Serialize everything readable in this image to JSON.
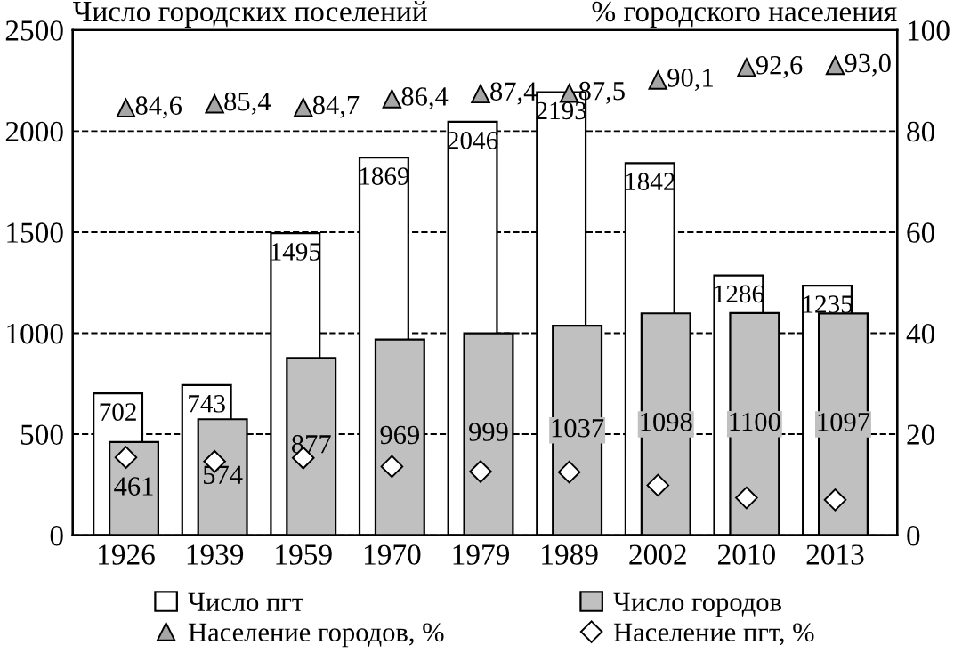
{
  "chart_data": {
    "type": "bar",
    "ylabel": "Число городских поселений",
    "y2label": "% городского населения",
    "categories": [
      "1926",
      "1939",
      "1959",
      "1970",
      "1979",
      "1989",
      "2002",
      "2010",
      "2013"
    ],
    "series": [
      {
        "name": "Число пгт",
        "color": "#ffffff",
        "values": [
          702,
          743,
          1495,
          1869,
          2046,
          2193,
          1842,
          1286,
          1235
        ],
        "data_labels": true
      },
      {
        "name": "Число городов",
        "color": "#c0c0c0",
        "values": [
          461,
          574,
          877,
          969,
          999,
          1037,
          1098,
          1100,
          1097
        ],
        "data_labels": true
      },
      {
        "name": "Население городов, %",
        "color": "#a6a6a6",
        "type": "scatter",
        "marker": "triangle",
        "axis": "y2",
        "values": [
          84.6,
          85.4,
          84.7,
          86.4,
          87.4,
          87.5,
          90.1,
          92.6,
          93.0
        ],
        "value_labels": [
          "84,6",
          "85,4",
          "84,7",
          "86,4",
          "87,4",
          "87,5",
          "90,1",
          "92,6",
          "93,0"
        ]
      },
      {
        "name": "Население пгт, %",
        "color": "#ffffff",
        "type": "scatter",
        "marker": "diamond",
        "axis": "y2",
        "values": [
          15.4,
          14.6,
          15.3,
          13.6,
          12.6,
          12.5,
          9.9,
          7.4,
          7.0
        ]
      }
    ],
    "ylim": [
      0,
      2500
    ],
    "yticks": [
      0,
      500,
      1000,
      1500,
      2000,
      2500
    ],
    "y2lim": [
      0,
      100
    ],
    "y2ticks": [
      0,
      20,
      40,
      60,
      80,
      100
    ],
    "grid": "y",
    "legend": "bottom"
  }
}
